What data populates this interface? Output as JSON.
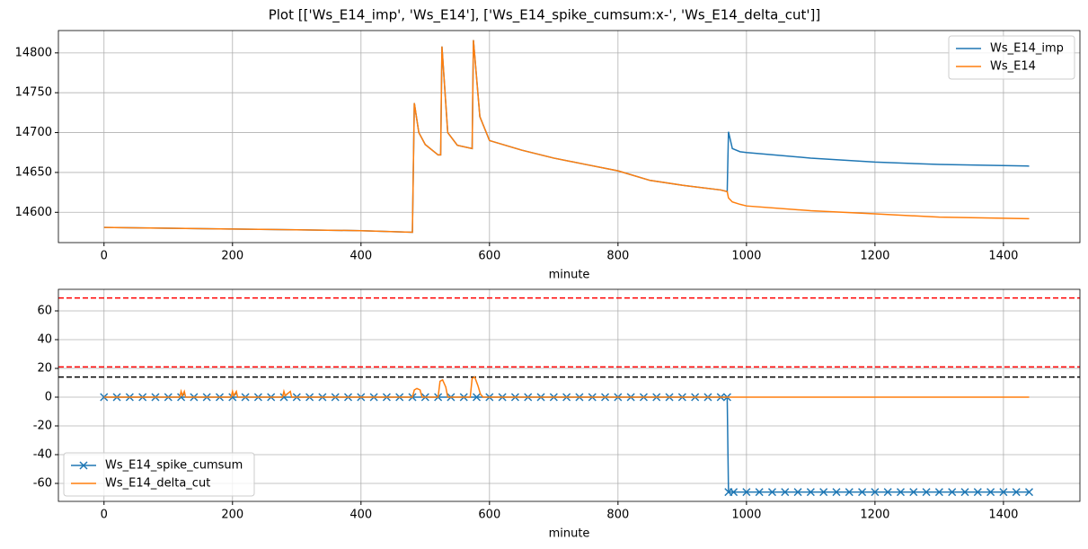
{
  "title": "Plot [['Ws_E14_imp', 'Ws_E14'], ['Ws_E14_spike_cumsum:x-', 'Ws_E14_delta_cut']]",
  "chart_data": [
    {
      "type": "line",
      "x_label": "minute",
      "x": [
        0,
        100,
        200,
        300,
        400,
        480,
        483,
        490,
        500,
        520,
        524,
        526,
        535,
        550,
        573,
        575,
        585,
        600,
        650,
        700,
        750,
        800,
        850,
        900,
        960,
        970,
        972,
        978,
        990,
        1000,
        1100,
        1200,
        1300,
        1440
      ],
      "series": [
        {
          "name": "Ws_E14_imp",
          "color": "#1f77b4",
          "values": [
            14581,
            14580,
            14579,
            14578,
            14577,
            14575,
            14737,
            14700,
            14685,
            14672,
            14672,
            14808,
            14700,
            14684,
            14680,
            14816,
            14720,
            14690,
            14678,
            14668,
            14660,
            14652,
            14640,
            14634,
            14628,
            14626,
            14701,
            14680,
            14676,
            14675,
            14668,
            14663,
            14660,
            14658
          ]
        },
        {
          "name": "Ws_E14",
          "color": "#ff7f0e",
          "values": [
            14581,
            14580,
            14579,
            14578,
            14577,
            14575,
            14737,
            14700,
            14685,
            14672,
            14672,
            14808,
            14700,
            14684,
            14680,
            14816,
            14720,
            14690,
            14678,
            14668,
            14660,
            14652,
            14640,
            14634,
            14628,
            14626,
            14618,
            14613,
            14610,
            14608,
            14602,
            14598,
            14594,
            14592
          ]
        }
      ],
      "xlim": [
        -71,
        1519
      ],
      "xticks": [
        0,
        200,
        400,
        600,
        800,
        1000,
        1200,
        1400
      ],
      "ylim": [
        14562,
        14828
      ],
      "yticks": [
        14600,
        14650,
        14700,
        14750,
        14800
      ],
      "grid": true,
      "legend": "upper right"
    },
    {
      "type": "line",
      "x_label": "minute",
      "series": [
        {
          "name": "Ws_E14_spike_cumsum",
          "color": "#1f77b4",
          "marker": "x",
          "x": [
            0,
            20,
            40,
            60,
            80,
            100,
            120,
            140,
            160,
            180,
            200,
            220,
            240,
            260,
            280,
            300,
            320,
            340,
            360,
            380,
            400,
            420,
            440,
            460,
            480,
            500,
            520,
            540,
            560,
            580,
            600,
            620,
            640,
            660,
            680,
            700,
            720,
            740,
            760,
            780,
            800,
            820,
            840,
            860,
            880,
            900,
            920,
            940,
            960,
            970,
            972,
            980,
            1000,
            1020,
            1040,
            1060,
            1080,
            1100,
            1120,
            1140,
            1160,
            1180,
            1200,
            1220,
            1240,
            1260,
            1280,
            1300,
            1320,
            1340,
            1360,
            1380,
            1400,
            1420,
            1440
          ],
          "values": [
            0,
            0,
            0,
            0,
            0,
            0,
            0,
            0,
            0,
            0,
            0,
            0,
            0,
            0,
            0,
            0,
            0,
            0,
            0,
            0,
            0,
            0,
            0,
            0,
            0,
            0,
            0,
            0,
            0,
            0,
            0,
            0,
            0,
            0,
            0,
            0,
            0,
            0,
            0,
            0,
            0,
            0,
            0,
            0,
            0,
            0,
            0,
            0,
            0,
            0,
            -66,
            -66,
            -66,
            -66,
            -66,
            -66,
            -66,
            -66,
            -66,
            -66,
            -66,
            -66,
            -66,
            -66,
            -66,
            -66,
            -66,
            -66,
            -66,
            -66,
            -66,
            -66,
            -66,
            -66,
            -66
          ]
        },
        {
          "name": "Ws_E14_delta_cut",
          "color": "#ff7f0e",
          "x": [
            0,
            118,
            120,
            122,
            125,
            127,
            198,
            200,
            202,
            206,
            208,
            278,
            280,
            282,
            290,
            292,
            480,
            483,
            487,
            492,
            495,
            520,
            523,
            527,
            532,
            535,
            570,
            573,
            577,
            582,
            586,
            590,
            1440
          ],
          "values": [
            0,
            0,
            4,
            1,
            4,
            0,
            0,
            4,
            1,
            4,
            0,
            0,
            4,
            1,
            4,
            0,
            0,
            5,
            6,
            5,
            0,
            0,
            11,
            12,
            7,
            0,
            0,
            13,
            14,
            8,
            2,
            0,
            0
          ]
        }
      ],
      "hlines": [
        {
          "value": 69,
          "color": "#ff0000"
        },
        {
          "value": 21,
          "color": "#ff0000"
        },
        {
          "value": 14,
          "color": "#000000"
        }
      ],
      "xlim": [
        -71,
        1519
      ],
      "xticks": [
        0,
        200,
        400,
        600,
        800,
        1000,
        1200,
        1400
      ],
      "ylim": [
        -72.5,
        75
      ],
      "yticks": [
        -60,
        -40,
        -20,
        0,
        20,
        40,
        60
      ],
      "grid": true,
      "legend": "lower left"
    }
  ]
}
